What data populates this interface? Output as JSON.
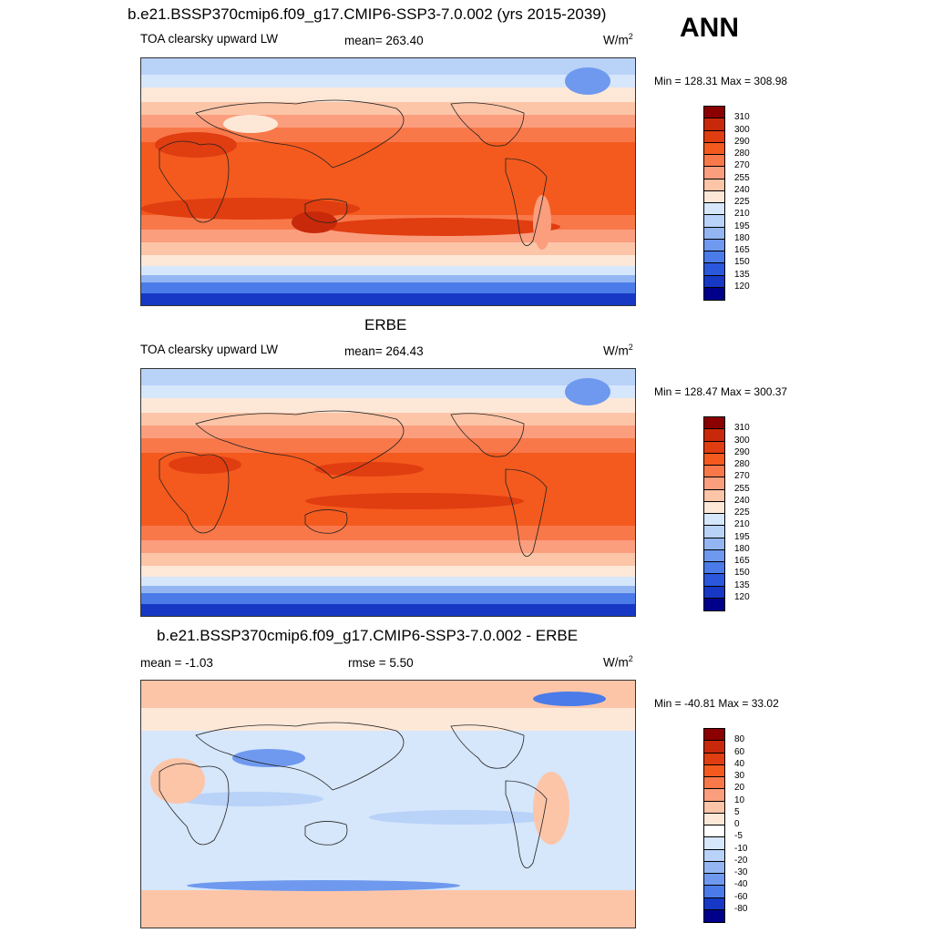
{
  "season": "ANN",
  "panels": [
    {
      "title": "b.e21.BSSP370cmip6.f09_g17.CMIP6-SSP3-7.0.002 (yrs 2015-2039)",
      "variable": "TOA clearsky upward LW",
      "stat_label": "mean= 263.40",
      "units_base": "W/m",
      "units_exp": "2",
      "minmax": "Min = 128.31 Max = 308.98",
      "colorbar": {
        "labels": [
          "310",
          "300",
          "290",
          "280",
          "270",
          "255",
          "240",
          "225",
          "210",
          "195",
          "180",
          "165",
          "150",
          "135",
          "120"
        ],
        "colors": [
          "#8b0000",
          "#c8290a",
          "#e03d10",
          "#f45a1e",
          "#f8784a",
          "#fb9e7e",
          "#fcc5a8",
          "#fde8d8",
          "#d6e6fb",
          "#b8d2f8",
          "#93b6f3",
          "#6e99ee",
          "#4a7be8",
          "#2b57dc",
          "#1638c4",
          "#00008b"
        ]
      }
    },
    {
      "title": "ERBE",
      "variable": "TOA clearsky upward LW",
      "stat_label": "mean= 264.43",
      "units_base": "W/m",
      "units_exp": "2",
      "minmax": "Min = 128.47 Max = 300.37",
      "colorbar": {
        "labels": [
          "310",
          "300",
          "290",
          "280",
          "270",
          "255",
          "240",
          "225",
          "210",
          "195",
          "180",
          "165",
          "150",
          "135",
          "120"
        ],
        "colors": [
          "#8b0000",
          "#c8290a",
          "#e03d10",
          "#f45a1e",
          "#f8784a",
          "#fb9e7e",
          "#fcc5a8",
          "#fde8d8",
          "#d6e6fb",
          "#b8d2f8",
          "#93b6f3",
          "#6e99ee",
          "#4a7be8",
          "#2b57dc",
          "#1638c4",
          "#00008b"
        ]
      }
    },
    {
      "title": "b.e21.BSSP370cmip6.f09_g17.CMIP6-SSP3-7.0.002 - ERBE",
      "variable": "mean =  -1.03",
      "stat_label": "rmse =   5.50",
      "units_base": "W/m",
      "units_exp": "2",
      "minmax": "Min = -40.81 Max =  33.02",
      "colorbar": {
        "labels": [
          "80",
          "60",
          "40",
          "30",
          "20",
          "10",
          "5",
          "0",
          "-5",
          "-10",
          "-20",
          "-30",
          "-40",
          "-60",
          "-80"
        ],
        "colors": [
          "#8b0000",
          "#c8290a",
          "#e03d10",
          "#f45a1e",
          "#f8784a",
          "#fb9e7e",
          "#fcc5a8",
          "#fde8d8",
          "#ffffff",
          "#d6e6fb",
          "#b8d2f8",
          "#93b6f3",
          "#6e99ee",
          "#4a7be8",
          "#1638c4",
          "#00008b"
        ]
      }
    }
  ]
}
